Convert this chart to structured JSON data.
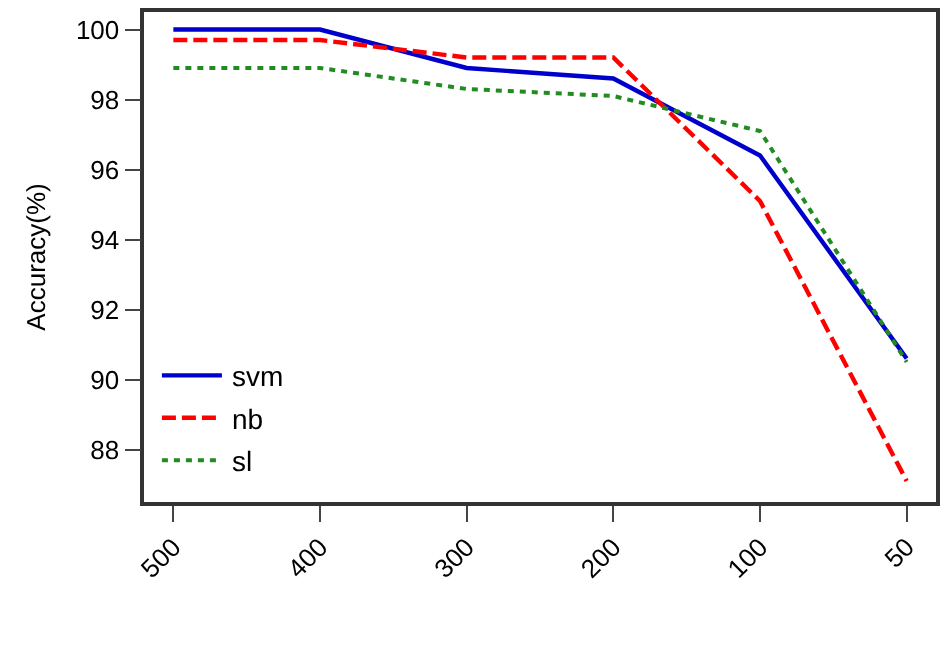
{
  "chart_data": {
    "type": "line",
    "ylabel": "Accuracy(%)",
    "categories": [
      "500",
      "400",
      "300",
      "200",
      "100",
      "50"
    ],
    "series": [
      {
        "name": "svm",
        "color": "#0000cc",
        "line_style": "solid",
        "values": [
          100,
          100,
          98.9,
          98.6,
          96.4,
          90.6
        ]
      },
      {
        "name": "nb",
        "color": "#ff0000",
        "line_style": "dashed",
        "values": [
          99.7,
          99.7,
          99.2,
          99.2,
          95.1,
          87.1
        ]
      },
      {
        "name": "sl",
        "color": "#228b22",
        "line_style": "dotted",
        "values": [
          98.9,
          98.9,
          98.3,
          98.1,
          97.1,
          90.5
        ]
      }
    ],
    "ylim": [
      86.5,
      100.5
    ],
    "yticks": [
      88,
      90,
      92,
      94,
      96,
      98,
      100
    ],
    "grid": false,
    "legend": "bottom left",
    "marker": "none"
  }
}
